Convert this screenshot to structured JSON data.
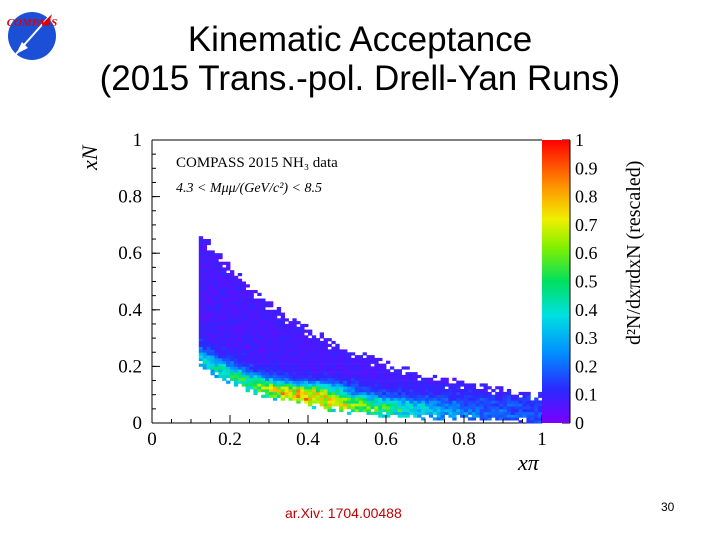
{
  "slide": {
    "title_line1": "Kinematic Acceptance",
    "title_line2": "(2015 Trans.-pol. Drell-Yan Runs)",
    "reference": "ar.Xiv: 1704.00488",
    "page_number": "30",
    "logo_text": "COMPASS"
  },
  "chart_data": {
    "type": "heatmap",
    "annotation_line1": "COMPASS 2015 NH₃ data",
    "annotation_line2": "4.3 < Mμμ/(GeV/c²) < 8.5",
    "xlabel": "xπ",
    "ylabel": "xN",
    "colorbar_label": "d²N/dxπdxN (rescaled)",
    "xlim": [
      0,
      1
    ],
    "ylim": [
      0,
      1
    ],
    "zlim": [
      0,
      1
    ],
    "x_ticks": [
      "0",
      "0.2",
      "0.4",
      "0.6",
      "0.8",
      "1"
    ],
    "y_ticks": [
      "0",
      "0.2",
      "0.4",
      "0.6",
      "0.8",
      "1"
    ],
    "z_ticks": [
      "0",
      "0.1",
      "0.2",
      "0.3",
      "0.4",
      "0.5",
      "0.6",
      "0.7",
      "0.8",
      "0.9",
      "1"
    ],
    "ridge": {
      "description_points": [
        {
          "x": 0.15,
          "y": 0.2
        },
        {
          "x": 0.3,
          "y": 0.12
        },
        {
          "x": 0.45,
          "y": 0.09
        },
        {
          "x": 0.6,
          "y": 0.07
        },
        {
          "x": 0.8,
          "y": 0.05
        },
        {
          "x": 0.95,
          "y": 0.04
        }
      ],
      "peak": {
        "x": 0.42,
        "y": 0.12,
        "z": 1.0
      }
    },
    "colors": {
      "low": "#6a00ff",
      "mid": "#00e0ff",
      "high": "#ff0000"
    }
  }
}
